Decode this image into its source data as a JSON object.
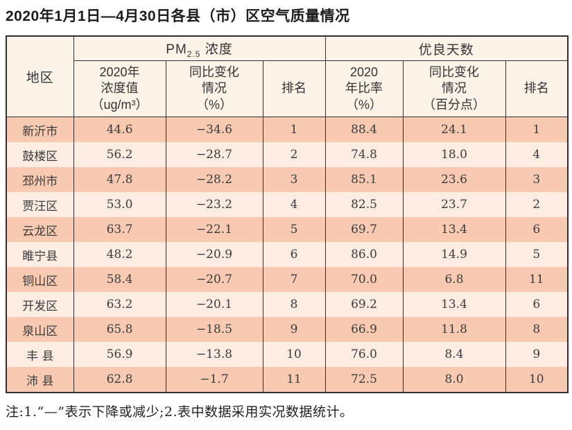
{
  "page": {
    "title": "2020年1月1日—4月30日各县（市）区空气质量情况",
    "footnote": "注:1.“—”表示下降或减少;2.表中数据采用实况数据统计。"
  },
  "colors": {
    "header_bg": "#fbf2e8",
    "row_odd": "#f7cab1",
    "row_even": "#fcece2",
    "border": "#2f2f2f"
  },
  "table": {
    "header": {
      "region_label": "地区",
      "pm_group": {
        "prefix": "PM",
        "sub": "2.5",
        "suffix": " 浓度"
      },
      "good_group": "优良天数",
      "pm_value_label": "2020年\n浓度值\n（ug/m³）",
      "pm_change_label": "同比变化\n情况\n（%）",
      "pm_rank_label": "排名",
      "good_rate_label": "2020\n年比率\n（%）",
      "good_change_label": "同比变化\n情况\n（百分点）",
      "good_rank_label": "排名"
    },
    "rows": [
      {
        "region": "新沂市",
        "pm_value": "44.6",
        "pm_change": "−34.6",
        "pm_rank": "1",
        "good_rate": "88.4",
        "good_change": "24.1",
        "good_rank": "1"
      },
      {
        "region": "鼓楼区",
        "pm_value": "56.2",
        "pm_change": "−28.7",
        "pm_rank": "2",
        "good_rate": "74.8",
        "good_change": "18.0",
        "good_rank": "4"
      },
      {
        "region": "邳州市",
        "pm_value": "47.8",
        "pm_change": "−28.2",
        "pm_rank": "3",
        "good_rate": "85.1",
        "good_change": "23.6",
        "good_rank": "3"
      },
      {
        "region": "贾汪区",
        "pm_value": "53.0",
        "pm_change": "−23.2",
        "pm_rank": "4",
        "good_rate": "82.5",
        "good_change": "23.7",
        "good_rank": "2"
      },
      {
        "region": "云龙区",
        "pm_value": "63.7",
        "pm_change": "−22.1",
        "pm_rank": "5",
        "good_rate": "69.7",
        "good_change": "13.4",
        "good_rank": "6"
      },
      {
        "region": "睢宁县",
        "pm_value": "48.2",
        "pm_change": "−20.9",
        "pm_rank": "6",
        "good_rate": "86.0",
        "good_change": "14.9",
        "good_rank": "5"
      },
      {
        "region": "铜山区",
        "pm_value": "58.4",
        "pm_change": "−20.7",
        "pm_rank": "7",
        "good_rate": "70.0",
        "good_change": "6.8",
        "good_rank": "11"
      },
      {
        "region": "开发区",
        "pm_value": "63.2",
        "pm_change": "−20.1",
        "pm_rank": "8",
        "good_rate": "69.2",
        "good_change": "13.4",
        "good_rank": "6"
      },
      {
        "region": "泉山区",
        "pm_value": "65.8",
        "pm_change": "−18.5",
        "pm_rank": "9",
        "good_rate": "66.9",
        "good_change": "11.8",
        "good_rank": "8"
      },
      {
        "region": "丰 县",
        "pm_value": "56.9",
        "pm_change": "−13.8",
        "pm_rank": "10",
        "good_rate": "76.0",
        "good_change": "8.4",
        "good_rank": "9"
      },
      {
        "region": "沛 县",
        "pm_value": "62.8",
        "pm_change": "−1.7",
        "pm_rank": "11",
        "good_rate": "72.5",
        "good_change": "8.0",
        "good_rank": "10"
      }
    ]
  },
  "chart_data": {
    "type": "table",
    "title": "2020年1月1日—4月30日各县（市）区空气质量情况",
    "columns": [
      "地区",
      "PM2.5浓度 2020年浓度值(ug/m³)",
      "PM2.5浓度 同比变化情况(%)",
      "PM2.5浓度 排名",
      "优良天数 2020年比率(%)",
      "优良天数 同比变化情况(百分点)",
      "优良天数 排名"
    ],
    "rows": [
      [
        "新沂市",
        44.6,
        -34.6,
        1,
        88.4,
        24.1,
        1
      ],
      [
        "鼓楼区",
        56.2,
        -28.7,
        2,
        74.8,
        18.0,
        4
      ],
      [
        "邳州市",
        47.8,
        -28.2,
        3,
        85.1,
        23.6,
        3
      ],
      [
        "贾汪区",
        53.0,
        -23.2,
        4,
        82.5,
        23.7,
        2
      ],
      [
        "云龙区",
        63.7,
        -22.1,
        5,
        69.7,
        13.4,
        6
      ],
      [
        "睢宁县",
        48.2,
        -20.9,
        6,
        86.0,
        14.9,
        5
      ],
      [
        "铜山区",
        58.4,
        -20.7,
        7,
        70.0,
        6.8,
        11
      ],
      [
        "开发区",
        63.2,
        -20.1,
        8,
        69.2,
        13.4,
        6
      ],
      [
        "泉山区",
        65.8,
        -18.5,
        9,
        66.9,
        11.8,
        8
      ],
      [
        "丰县",
        56.9,
        -13.8,
        10,
        76.0,
        8.4,
        9
      ],
      [
        "沛县",
        62.8,
        -1.7,
        11,
        72.5,
        8.0,
        10
      ]
    ]
  }
}
